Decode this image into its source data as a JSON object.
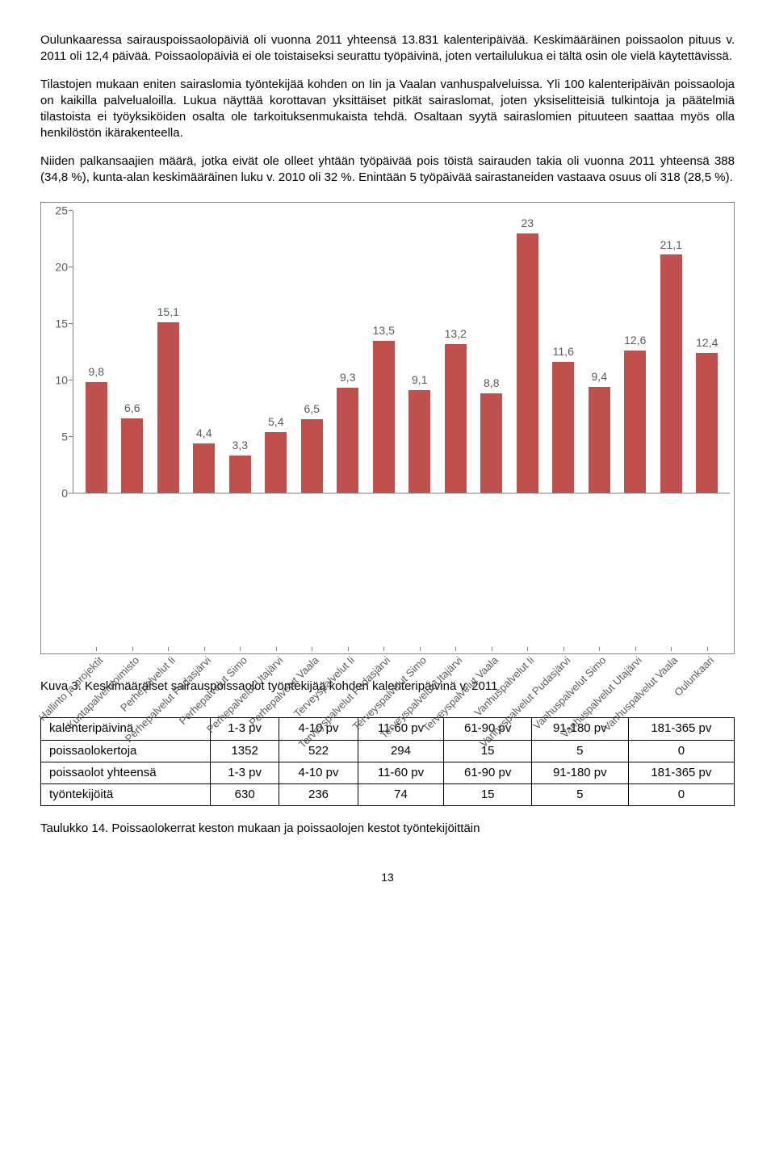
{
  "para1": "Oulunkaaressa sairauspoissaolopäiviä oli vuonna 2011 yhteensä 13.831 kalenteripäivää. Keskimääräinen poissaolon pituus v. 2011 oli 12,4 päivää. Poissaolopäiviä ei ole toistaiseksi seurattu työpäivinä, joten vertailulukua ei tältä osin ole vielä käytettävissä.",
  "para2": "Tilastojen mukaan eniten sairaslomia työntekijää kohden on Iin ja Vaalan vanhuspalveluissa. Yli 100 kalenteripäivän poissaoloja on kaikilla palvelualoilla. Lukua näyttää korottavan yksittäiset pitkät sairaslomat, joten yksiselitteisiä tulkintoja ja päätelmiä tilastoista ei työyksiköiden osalta ole tarkoituksenmukaista tehdä. Osaltaan syytä sairaslomien pituuteen saattaa myös olla henkilöstön ikärakenteella.",
  "para3": "Niiden palkansaajien määrä, jotka eivät ole olleet yhtään työpäivää pois töistä sairauden takia oli vuonna 2011 yhteensä 388 (34,8 %), kunta-alan keskimääräinen luku v. 2010 oli 32 %.  Enintään 5 työpäivää sairastaneiden vastaava osuus oli 318 (28,5 %).",
  "chart": {
    "type": "bar",
    "bar_color": "#c0504d",
    "grid_color": "#808080",
    "text_color": "#595959",
    "background_color": "#ffffff",
    "ylim": [
      0,
      25
    ],
    "ytick_step": 5,
    "yticks": [
      0,
      5,
      10,
      15,
      20,
      25
    ],
    "categories": [
      "Hallinto ja projektit",
      "Kuntapalvelutoimisto",
      "Perhepalvelut Ii",
      "Perhepalvelut Pudasjärvi",
      "Perhepalvelut Simo",
      "Perhepalvelut Utajärvi",
      "Perhepalvelut Vaala",
      "Terveyspalvelut Ii",
      "Terveyspalvelut Pudasjärvi",
      "Terveyspalvelut Simo",
      "Terveyspalvelut Utajärvi",
      "Terveyspalvelut Vaala",
      "Vanhuspalvelut Ii",
      "Vanhuspalvelut Pudasjärvi",
      "Vanhuspalvelut Simo",
      "Vanhuspalvelut Utajärvi",
      "Vanhuspalvelut Vaala",
      "Oulunkaari"
    ],
    "values": [
      9.8,
      6.6,
      15.1,
      4.4,
      3.3,
      5.4,
      6.5,
      9.3,
      13.5,
      9.1,
      13.2,
      8.8,
      23,
      11.6,
      9.4,
      12.6,
      21.1,
      12.4
    ],
    "value_labels": [
      "9,8",
      "6,6",
      "15,1",
      "4,4",
      "3,3",
      "5,4",
      "6,5",
      "9,3",
      "13,5",
      "9,1",
      "13,2",
      "8,8",
      "23",
      "11,6",
      "9,4",
      "12,6",
      "21,1",
      "12,4"
    ]
  },
  "chart_caption": "Kuva 3. Keskimääräiset sairauspoissaolot työntekijää kohden kalenteripäivinä v. 2011",
  "table": {
    "columns": [
      "",
      "1-3 pv",
      "4-10 pv",
      "11-60 pv",
      "61-90 pv",
      "91-180 pv",
      "181-365 pv"
    ],
    "rows": [
      [
        "kalenteripäivinä",
        "1-3 pv",
        "4-10 pv",
        "11-60 pv",
        "61-90 pv",
        "91-180 pv",
        "181-365 pv"
      ],
      [
        "poissaolokertoja",
        "1352",
        "522",
        "294",
        "15",
        "5",
        "0"
      ],
      [
        "poissaolot yhteensä",
        "1-3 pv",
        "4-10 pv",
        "11-60 pv",
        "61-90 pv",
        "91-180 pv",
        "181-365 pv"
      ],
      [
        "työntekijöitä",
        "630",
        "236",
        "74",
        "15",
        "5",
        "0"
      ]
    ]
  },
  "table_caption": "Taulukko 14.  Poissaolokerrat keston mukaan ja poissaolojen kestot työntekijöittäin",
  "page_number": "13"
}
